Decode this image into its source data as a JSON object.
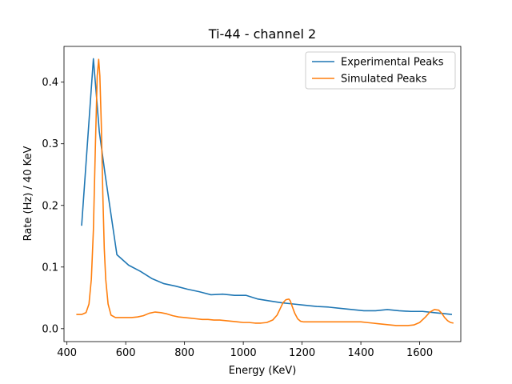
{
  "chart_data": {
    "type": "line",
    "title": "Ti-44 - channel 2",
    "xlabel": "Energy (KeV)",
    "ylabel": "Rate (Hz) / 40 KeV",
    "xlim": [
      390,
      1740
    ],
    "ylim": [
      -0.021,
      0.458
    ],
    "xticks": [
      400,
      600,
      800,
      1000,
      1200,
      1400,
      1600
    ],
    "yticks": [
      0.0,
      0.1,
      0.2,
      0.3,
      0.4
    ],
    "xtick_labels": [
      "400",
      "600",
      "800",
      "1000",
      "1200",
      "1400",
      "1600"
    ],
    "ytick_labels": [
      "0.0",
      "0.1",
      "0.2",
      "0.3",
      "0.4"
    ],
    "grid": false,
    "legend_position": "top-right",
    "series": [
      {
        "name": "Experimental Peaks",
        "color": "#1f77b4",
        "x": [
          450,
          490,
          500,
          510,
          530,
          570,
          610,
          650,
          690,
          730,
          770,
          810,
          850,
          890,
          930,
          970,
          1010,
          1050,
          1090,
          1130,
          1170,
          1210,
          1250,
          1290,
          1330,
          1370,
          1410,
          1450,
          1490,
          1530,
          1570,
          1610,
          1650,
          1690,
          1710
        ],
        "y": [
          0.167,
          0.438,
          0.38,
          0.32,
          0.25,
          0.12,
          0.103,
          0.093,
          0.081,
          0.073,
          0.069,
          0.064,
          0.06,
          0.055,
          0.056,
          0.054,
          0.054,
          0.048,
          0.045,
          0.042,
          0.04,
          0.038,
          0.036,
          0.035,
          0.033,
          0.031,
          0.029,
          0.029,
          0.031,
          0.029,
          0.028,
          0.028,
          0.026,
          0.024,
          0.023
        ]
      },
      {
        "name": "Simulated Peaks",
        "color": "#ff7f0e",
        "x": [
          432,
          450,
          465,
          475,
          483,
          490,
          497,
          503,
          508,
          512,
          517,
          522,
          527,
          532,
          540,
          550,
          565,
          580,
          600,
          620,
          640,
          660,
          680,
          700,
          720,
          740,
          760,
          780,
          800,
          820,
          840,
          860,
          880,
          900,
          920,
          940,
          960,
          980,
          1000,
          1020,
          1040,
          1060,
          1080,
          1100,
          1115,
          1125,
          1135,
          1145,
          1155,
          1160,
          1165,
          1175,
          1185,
          1195,
          1205,
          1220,
          1240,
          1260,
          1280,
          1300,
          1320,
          1340,
          1360,
          1380,
          1400,
          1420,
          1440,
          1460,
          1480,
          1500,
          1520,
          1540,
          1560,
          1580,
          1600,
          1620,
          1635,
          1650,
          1665,
          1675,
          1685,
          1695,
          1705,
          1715
        ],
        "y": [
          0.023,
          0.023,
          0.026,
          0.04,
          0.08,
          0.16,
          0.3,
          0.41,
          0.437,
          0.41,
          0.33,
          0.22,
          0.13,
          0.08,
          0.04,
          0.022,
          0.018,
          0.018,
          0.018,
          0.018,
          0.019,
          0.021,
          0.025,
          0.027,
          0.026,
          0.024,
          0.021,
          0.019,
          0.018,
          0.017,
          0.016,
          0.015,
          0.015,
          0.014,
          0.014,
          0.013,
          0.012,
          0.011,
          0.01,
          0.01,
          0.009,
          0.009,
          0.01,
          0.014,
          0.022,
          0.032,
          0.042,
          0.047,
          0.048,
          0.045,
          0.038,
          0.025,
          0.016,
          0.012,
          0.011,
          0.011,
          0.011,
          0.011,
          0.011,
          0.011,
          0.011,
          0.011,
          0.011,
          0.011,
          0.011,
          0.01,
          0.009,
          0.008,
          0.007,
          0.006,
          0.005,
          0.005,
          0.005,
          0.006,
          0.01,
          0.019,
          0.027,
          0.031,
          0.03,
          0.025,
          0.018,
          0.013,
          0.01,
          0.009
        ]
      }
    ]
  }
}
